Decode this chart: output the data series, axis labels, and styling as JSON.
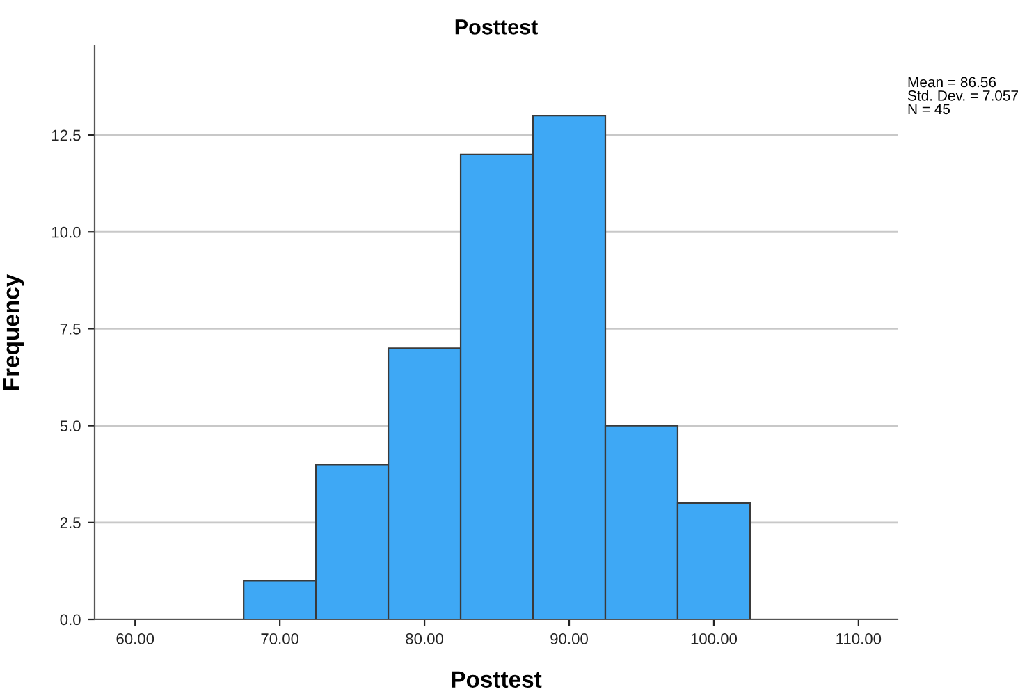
{
  "chart_data": {
    "type": "histogram",
    "title": "Posttest",
    "xlabel": "Posttest",
    "ylabel": "Frequency",
    "bins": [
      67.5,
      72.5,
      77.5,
      82.5,
      87.5,
      92.5,
      97.5,
      102.5
    ],
    "values": [
      1,
      4,
      7,
      12,
      13,
      5,
      3
    ],
    "color": "#3ea8f5",
    "xlim": [
      57.2,
      112.7
    ],
    "xticks": [
      {
        "value": 60,
        "label": "60.00"
      },
      {
        "value": 70,
        "label": "70.00"
      },
      {
        "value": 80,
        "label": "80.00"
      },
      {
        "value": 90,
        "label": "90.00"
      },
      {
        "value": 100,
        "label": "100.00"
      },
      {
        "value": 110,
        "label": "110.00"
      }
    ],
    "ylim": [
      0,
      14.8
    ],
    "yticks": [
      {
        "value": 0,
        "label": "0.0"
      },
      {
        "value": 2.5,
        "label": "2.5"
      },
      {
        "value": 5,
        "label": "5.0"
      },
      {
        "value": 7.5,
        "label": "7.5"
      },
      {
        "value": 10,
        "label": "10.0"
      },
      {
        "value": 12.5,
        "label": "12.5"
      }
    ],
    "grid": "y",
    "annotations": [
      "Mean = 86.56\nStd. Dev. = 7.057\nN = 45"
    ]
  }
}
